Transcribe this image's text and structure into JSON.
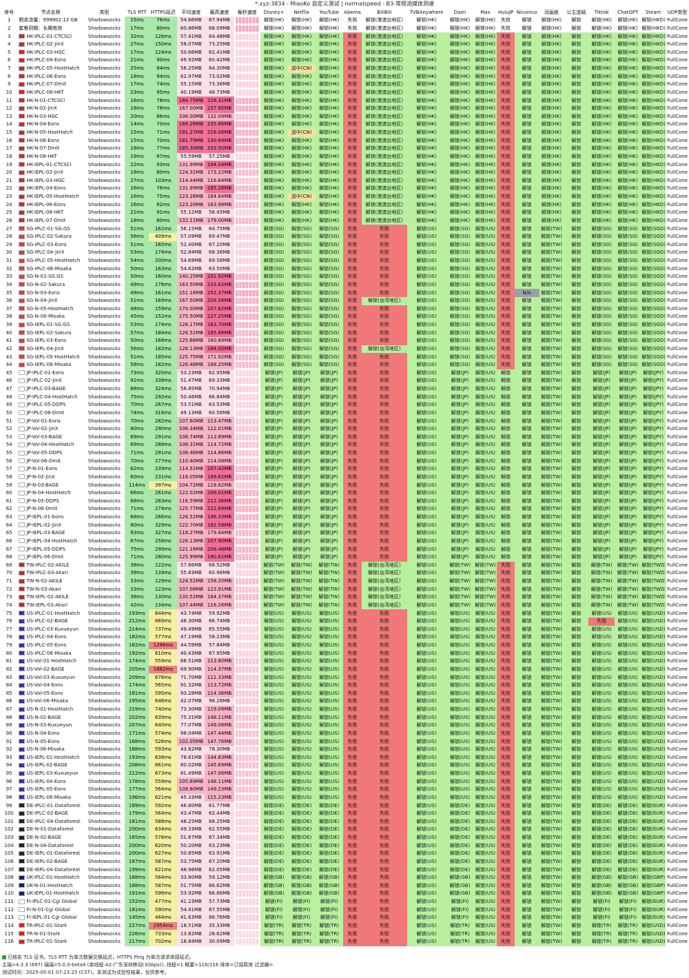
{
  "window_title": "*.xyz-3834 - MiaoKo 自定义测试 | normalspeed - B3-常规流媒体测速",
  "headers": [
    "序号",
    "节点名称",
    "类型",
    "TLS RTT",
    "HTTPS延迟",
    "平均速度",
    "最高速度",
    "每秒速度",
    "Disney+",
    "Netflix",
    "YouTube",
    "Abema",
    "BiliBili",
    "TVBAnywhere",
    "Dazn",
    "Max",
    "HuluJP",
    "Niconico",
    "动画疯",
    "公主连结",
    "Tiktok",
    "ChatGPT",
    "Steam",
    "UDP类型"
  ],
  "info_rows": [
    {
      "idx": "1",
      "name": "剩余流量：999802.12 GB",
      "type": "Shadowsocks",
      "tls": "15ms",
      "https": "76ms",
      "avg": "54.66MB",
      "max": "67.94MB"
    },
    {
      "idx": "2",
      "name": "套餐到期：长期有效",
      "type": "Shadowsocks",
      "tls": "17ms",
      "https": "80ms",
      "avg": "60.86MB",
      "max": "68.09MB"
    }
  ],
  "nodes": [
    [
      "3",
      "HK-IPLC-01-CTCSCI",
      "32ms",
      "126ms",
      "57.41MB",
      "64.48MB",
      "HK"
    ],
    [
      "4",
      "HK-IPLC-02-JinX",
      "27ms",
      "150ms",
      "58.07MB",
      "73.25MB",
      "HK"
    ],
    [
      "5",
      "HK-IPLC-03-HGC",
      "17ms",
      "124ms",
      "50.66MB",
      "62.41MB",
      "HK"
    ],
    [
      "6",
      "HK-IPLC-04-Eons",
      "21ms",
      "90ms",
      "49.92MB",
      "60.42MB",
      "HK"
    ],
    [
      "7",
      "HK-IPLC-05-HostHatch",
      "25ms",
      "94ms",
      "56.25MB",
      "64.30MB",
      "HK"
    ],
    [
      "8",
      "HK-IPLC-06-Eons",
      "18ms",
      "94ms",
      "62.97MB",
      "73.02MB",
      "HK"
    ],
    [
      "9",
      "HK-IPLC-07-Dmit",
      "17ms",
      "74ms",
      "55.15MB",
      "73.36MB",
      "HK"
    ],
    [
      "10",
      "HK-IPLC-08-HKT",
      "23ms",
      "95ms",
      "40.19MB",
      "48.73MB",
      "HK"
    ],
    [
      "11",
      "HK-N-01-CTCSCI",
      "16ms",
      "78ms",
      "184.75MB",
      "228.31MB",
      "HK"
    ],
    [
      "12",
      "HK-N-02-JinX",
      "18ms",
      "78ms",
      "167.00MB",
      "237.95MB",
      "HK"
    ],
    [
      "13",
      "HK-N-03-HGC",
      "20ms",
      "86ms",
      "106.00MB",
      "132.09MB",
      "HK"
    ],
    [
      "14",
      "HK-N-04-Eons",
      "14ms",
      "70ms",
      "189.26MB",
      "235.86MB",
      "HK"
    ],
    [
      "15",
      "HK-N-05-HostHatch",
      "15ms",
      "71ms",
      "191.27MB",
      "216.06MB",
      "HK"
    ],
    [
      "16",
      "HK-N-06-Eons",
      "15ms",
      "70ms",
      "181.79MB",
      "230.69MB",
      "HK"
    ],
    [
      "17",
      "HK-N-07-Dmit",
      "18ms",
      "77ms",
      "185.30MB",
      "233.50MB",
      "HK"
    ],
    [
      "18",
      "HK-N-08-HKT",
      "19ms",
      "87ms",
      "55.59MB",
      "57.25MB",
      "HK"
    ],
    [
      "19",
      "HK-IEPL-01-CTCSCI",
      "22ms",
      "93ms",
      "131.99MB",
      "194.04MB",
      "HK"
    ],
    [
      "20",
      "HK-IEPL-02-JinX",
      "18ms",
      "80ms",
      "124.31MB",
      "173.22MB",
      "HK"
    ],
    [
      "21",
      "HK-IEPL-03-HGC",
      "27ms",
      "103ms",
      "114.44MB",
      "116.64MB",
      "HK"
    ],
    [
      "22",
      "HK-IEPL-04-Eons",
      "16ms",
      "76ms",
      "131.99MB",
      "185.28MB",
      "HK"
    ],
    [
      "23",
      "HK-IEPL-05-HostHatch",
      "16ms",
      "75ms",
      "123.26MB",
      "164.84MB",
      "HK"
    ],
    [
      "24",
      "HK-IEPL-06-Eons",
      "16ms",
      "82ms",
      "123.20MB",
      "163.98MB",
      "HK"
    ],
    [
      "25",
      "HK-IEPL-08-HKT",
      "21ms",
      "91ms",
      "55.12MB",
      "56.45MB",
      "HK"
    ],
    [
      "26",
      "HK-IEPL-07-Dmit",
      "18ms",
      "80ms",
      "132.11MB",
      "179.00MB",
      "HK"
    ],
    [
      "27",
      "SG-IPLC-01-SG.GS",
      "51ms",
      "162ms",
      "56.15MB",
      "64.75MB",
      "SG"
    ],
    [
      "28",
      "SG-IPLC-02-Sakura",
      "56ms",
      "409ms",
      "57.09MB",
      "69.47MB",
      "SG"
    ],
    [
      "29",
      "SG-IPLC-03-Eons",
      "51ms",
      "165ms",
      "52.40MB",
      "67.20MB",
      "SG"
    ],
    [
      "30",
      "SG-IPLC-04-JinX",
      "53ms",
      "174ms",
      "52.84MB",
      "68.36MB",
      "SG"
    ],
    [
      "31",
      "SG-IPLC-05-HostHatch",
      "54ms",
      "200ms",
      "54.69MB",
      "69.58MB",
      "SG"
    ],
    [
      "32",
      "SG-IPLC-06-Misaka",
      "50ms",
      "163ms",
      "54.62MB",
      "63.50MB",
      "SG"
    ],
    [
      "33",
      "SG-N-01-SG.GS",
      "50ms",
      "160ms",
      "140.25MB",
      "201.92MB",
      "SG"
    ],
    [
      "34",
      "SG-N-02-Sakura",
      "49ms",
      "176ms",
      "163.50MB",
      "233.62MB",
      "SG"
    ],
    [
      "35",
      "SG-N-03-Eons",
      "49ms",
      "161ms",
      "151.16MB",
      "252.37MB",
      "SG"
    ],
    [
      "36",
      "SG-N-04-JinX",
      "51ms",
      "169ms",
      "167.50MB",
      "209.58MB",
      "SG"
    ],
    [
      "37",
      "SG-N-05-HostHatch",
      "48ms",
      "159ms",
      "170.00MB",
      "207.62MB",
      "SG"
    ],
    [
      "38",
      "SG-N-06-Misaka",
      "45ms",
      "152ms",
      "175.50MB",
      "227.25MB",
      "SG"
    ],
    [
      "39",
      "SG-IEPL-01-SG.GS",
      "53ms",
      "174ms",
      "128.17MB",
      "183.70MB",
      "SG"
    ],
    [
      "40",
      "SG-IEPL-02-Sakura",
      "57ms",
      "184ms",
      "126.51MB",
      "185.86MB",
      "SG"
    ],
    [
      "41",
      "SG-IEPL-03-Eons",
      "50ms",
      "168ms",
      "125.66MB",
      "160.69MB",
      "SG"
    ],
    [
      "42",
      "SG-IEPL-04-JinX",
      "56ms",
      "182ms",
      "126.13MB",
      "184.00MB",
      "SG"
    ],
    [
      "43",
      "SG-IEPL-05-HostHatch",
      "51ms",
      "185ms",
      "125.75MB",
      "171.92MB",
      "SG"
    ],
    [
      "44",
      "SG-IEPL-06-Misaka",
      "58ms",
      "182ms",
      "126.48MB",
      "168.25MB",
      "SG"
    ],
    [
      "45",
      "JP-IPLC-01-Eons",
      "73ms",
      "320ms",
      "53.23MB",
      "62.95MB",
      "JP"
    ],
    [
      "46",
      "JP-IPLC-02-JinX",
      "91ms",
      "338ms",
      "51.47MB",
      "69.33MB",
      "JP"
    ],
    [
      "47",
      "JP-IPLC-03-BAGE",
      "88ms",
      "324ms",
      "56.85MB",
      "70.94MB",
      "JP"
    ],
    [
      "48",
      "JP-IPLC-04-HostHatch",
      "75ms",
      "292ms",
      "50.46MB",
      "66.84MB",
      "JP"
    ],
    [
      "49",
      "JP-IPLC-05-DDPS",
      "70ms",
      "267ms",
      "53.51MB",
      "63.53MB",
      "JP"
    ],
    [
      "50",
      "JP-IPLC-06-Dmit",
      "74ms",
      "316ms",
      "49.13MB",
      "60.58MB",
      "JP"
    ],
    [
      "51",
      "JP-Vol-01-Eons",
      "70ms",
      "282ms",
      "107.60MB",
      "113.47MB",
      "JP"
    ],
    [
      "52",
      "JP-Vol-02-JinX",
      "80ms",
      "290ms",
      "106.34MB",
      "112.01MB",
      "JP"
    ],
    [
      "53",
      "JP-Vol-03-BAGE",
      "69ms",
      "291ms",
      "108.74MB",
      "113.89MB",
      "JP"
    ],
    [
      "54",
      "JP-Vol-04-HostHatch",
      "69ms",
      "288ms",
      "108.31MB",
      "114.72MB",
      "JP"
    ],
    [
      "55",
      "JP-Vol-05-DDPS",
      "71ms",
      "291ms",
      "108.46MB",
      "114.86MB",
      "JP"
    ],
    [
      "56",
      "JP-Vol-06-Dmit",
      "70ms",
      "277ms",
      "110.40MB",
      "114.08MB",
      "JP"
    ],
    [
      "57",
      "JP-N-01-Eons",
      "62ms",
      "239ms",
      "114.51MB",
      "207.42MB",
      "JP"
    ],
    [
      "58",
      "JP-N-02-JinX",
      "60ms",
      "231ms",
      "118.05MB",
      "199.62MB",
      "JP"
    ],
    [
      "59",
      "JP-N-03-BAGE",
      "114ms",
      "397ms",
      "104.72MB",
      "118.62MB",
      "JP"
    ],
    [
      "60",
      "JP-N-04-HostHatch",
      "66ms",
      "261ms",
      "122.02MB",
      "206.01MB",
      "JP"
    ],
    [
      "61",
      "JP-N-05-DDPS",
      "68ms",
      "263ms",
      "116.59MB",
      "212.36MB",
      "JP"
    ],
    [
      "62",
      "JP-N-06-Dmit",
      "71ms",
      "274ms",
      "125.77MB",
      "222.69MB",
      "JP"
    ],
    [
      "63",
      "JP-IEPL-01-Eons",
      "68ms",
      "266ms",
      "126.52MB",
      "196.33MB",
      "JP"
    ],
    [
      "64",
      "JP-IEPL-02-JinX",
      "80ms",
      "329ms",
      "122.70MB",
      "192.58MB",
      "JP"
    ],
    [
      "65",
      "JP-IEPL-03-BAGE",
      "93ms",
      "327ms",
      "118.27MB",
      "179.84MB",
      "JP"
    ],
    [
      "66",
      "JP-IEPL-04-HostHatch",
      "67ms",
      "258ms",
      "126.13MB",
      "207.90MB",
      "JP"
    ],
    [
      "67",
      "JP-IEPL-05-DDPS",
      "75ms",
      "299ms",
      "121.16MB",
      "208.48MB",
      "JP"
    ],
    [
      "68",
      "JP-IEPL-06-Dmit",
      "71ms",
      "280ms",
      "125.99MB",
      "190.81MB",
      "JP"
    ],
    [
      "69",
      "TW-IPLC-02-AKILE",
      "38ms",
      "122ms",
      "57.66MB",
      "68.52MB",
      "TW"
    ],
    [
      "70",
      "TW-IPLC-03-Akari",
      "39ms",
      "134ms",
      "55.83MB",
      "60.98MB",
      "TW"
    ],
    [
      "71",
      "TW-N-02-AKILE",
      "33ms",
      "129ms",
      "124.51MB",
      "158.20MB",
      "TW"
    ],
    [
      "72",
      "TW-N-03-Akari",
      "33ms",
      "123ms",
      "107.08MB",
      "123.91MB",
      "TW"
    ],
    [
      "73",
      "TW-IEPL-02-AKILE",
      "38ms",
      "130ms",
      "130.52MB",
      "164.37MB",
      "TW"
    ],
    [
      "74",
      "TW-IEPL-03-Akari",
      "42ms",
      "134ms",
      "107.44MB",
      "116.26MB",
      "TW"
    ],
    [
      "75",
      "US-IPLC-01-HostHatch",
      "193ms",
      "644ms",
      "43.74MB",
      "59.92MB",
      "US"
    ],
    [
      "76",
      "US-IPLC-02-BAGE",
      "212ms",
      "669ms",
      "46.30MB",
      "66.74MB",
      "US"
    ],
    [
      "77",
      "US-IPLC-03-Kuxueyun",
      "214ms",
      "737ms",
      "49.49MB",
      "65.55MB",
      "US"
    ],
    [
      "78",
      "US-IPLC-04-Eons",
      "182ms",
      "577ms",
      "47.19MB",
      "58.23MB",
      "US"
    ],
    [
      "79",
      "US-IPLC-05-Eons",
      "182ms",
      "1296ms",
      "44.59MB",
      "57.84MB",
      "US"
    ],
    [
      "80",
      "US-IPLC-06-Misaka",
      "192ms",
      "610ms",
      "40.43MB",
      "67.95MB",
      "US"
    ],
    [
      "81",
      "US-Vol-01-HostHatch",
      "174ms",
      "559ms",
      "68.51MB",
      "113.80MB",
      "US"
    ],
    [
      "82",
      "US-Vol-02-BAGE",
      "205ms",
      "1682ms",
      "69.90MB",
      "114.37MB",
      "US"
    ],
    [
      "83",
      "US-Vol-03-Kuxueyun",
      "209ms",
      "676ms",
      "71.70MB",
      "111.33MB",
      "US"
    ],
    [
      "84",
      "US-Vol-04-Eons",
      "174ms",
      "565ms",
      "91.32MB",
      "113.72MB",
      "US"
    ],
    [
      "85",
      "US-Vol-05-Eons",
      "181ms",
      "595ms",
      "93.28MB",
      "114.36MB",
      "US"
    ],
    [
      "86",
      "US-Vol-06-Misaka",
      "195ms",
      "646ms",
      "42.07MB",
      "98.28MB",
      "US"
    ],
    [
      "87",
      "US-N-01-HostHatch",
      "219ms",
      "740ms",
      "73.30MB",
      "119.09MB",
      "US"
    ],
    [
      "88",
      "US-N-02-BAGE",
      "202ms",
      "639ms",
      "75.31MB",
      "148.11MB",
      "US"
    ],
    [
      "89",
      "US-N-03-Kuxueyun",
      "207ms",
      "640ms",
      "77.07MB",
      "149.08MB",
      "US"
    ],
    [
      "90",
      "US-N-04-Eons",
      "171ms",
      "574ms",
      "98.04MB",
      "147.44MB",
      "US"
    ],
    [
      "91",
      "US-N-05-Eons",
      "168ms",
      "526ms",
      "102.05MB",
      "147.76MB",
      "US"
    ],
    [
      "92",
      "US-N-06-Misaka",
      "188ms",
      "593ms",
      "43.82MB",
      "78.30MB",
      "US"
    ],
    [
      "93",
      "US-IEPL-01-HostHatch",
      "193ms",
      "638ms",
      "78.61MB",
      "144.83MB",
      "US"
    ],
    [
      "94",
      "US-IEPL-02-BAGE",
      "208ms",
      "661ms",
      "80.02MB",
      "145.69MB",
      "US"
    ],
    [
      "95",
      "US-IEPL-03-Kuxueyun",
      "212ms",
      "673ms",
      "81.49MB",
      "147.06MB",
      "US"
    ],
    [
      "96",
      "US-IEPL-04-Eons",
      "178ms",
      "559ms",
      "105.69MB",
      "148.11MB",
      "US"
    ],
    [
      "97",
      "US-IEPL-05-Eons",
      "177ms",
      "564ms",
      "108.80MB",
      "149.23MB",
      "US"
    ],
    [
      "98",
      "US-IEPL-06-Misaka",
      "196ms",
      "621ms",
      "45.33MB",
      "115.23MB",
      "US"
    ],
    [
      "99",
      "DE-IPLC-01-Dataforest",
      "189ms",
      "592ms",
      "46.80MB",
      "61.77MB",
      "DE"
    ],
    [
      "100",
      "DE-IPLC-02-BAGE",
      "179ms",
      "564ms",
      "43.47MB",
      "62.44MB",
      "DE"
    ],
    [
      "101",
      "DE-IPLC-04-Dataforest",
      "181ms",
      "588ms",
      "48.25MB",
      "68.25MB",
      "DE"
    ],
    [
      "102",
      "DE-N-01-Dataforest",
      "200ms",
      "634ms",
      "49.33MB",
      "62.55MB",
      "DE"
    ],
    [
      "103",
      "DE-N-02-BAGE",
      "185ms",
      "578ms",
      "51.67MB",
      "67.34MB",
      "DE"
    ],
    [
      "104",
      "DE-N-04-Dataforest",
      "200ms",
      "620ms",
      "50.20MB",
      "63.23MB",
      "DE"
    ],
    [
      "105",
      "DE-IEPL-01-Dataforest",
      "200ms",
      "627ms",
      "50.85MB",
      "63.91MB",
      "DE"
    ],
    [
      "106",
      "DE-IEPL-02-BAGE",
      "187ms",
      "587ms",
      "53.75MB",
      "67.20MB",
      "DE"
    ],
    [
      "107",
      "DE-IEPL-04-Dataforest",
      "199ms",
      "621ms",
      "48.96MB",
      "62.05MB",
      "DE"
    ],
    [
      "108",
      "UK-IPLC-01-HostHatch",
      "188ms",
      "584ms",
      "33.80MB",
      "59.12MB",
      "GB"
    ],
    [
      "109",
      "UK-N-01-HostHatch",
      "188ms",
      "587ms",
      "51.75MB",
      "66.62MB",
      "GB"
    ],
    [
      "110",
      "UK-IEPL-01-HostHatch",
      "191ms",
      "596ms",
      "53.92MB",
      "66.86MB",
      "GB"
    ],
    [
      "111",
      "FI-IPLC-01-Cgi Global",
      "152ms",
      "477ms",
      "41.23MB",
      "57.73MB",
      "FI"
    ],
    [
      "112",
      "FI-N-01-Cgi Global",
      "181ms",
      "590ms",
      "54.41MB",
      "67.55MB",
      "FI"
    ],
    [
      "113",
      "FI-IEPL-01-Cgi Global",
      "145ms",
      "484ms",
      "41.63MB",
      "86.76MB",
      "FI"
    ],
    [
      "114",
      "TR-IPLC-01-Stark",
      "227ms",
      "2954ms",
      "18.51MB",
      "35.33MB",
      "TR"
    ],
    [
      "115",
      "TR-N-01-Stark",
      "226ms",
      "733ms",
      "13.82MB",
      "28.62MB",
      "TR"
    ],
    [
      "116",
      "TR-IPLC-01-Stark",
      "217ms",
      "702ms",
      "18.84MB",
      "30.09MB",
      "TR"
    ]
  ],
  "unlock_words": {
    "ok": "解锁",
    "fail": "失败",
    "na": "N/A",
    "type": "Shadowsocks",
    "udp": "FullCone",
    "bili_hk": "解锁(港澳台地区)",
    "bili_tw": "解锁(台湾地区)",
    "bili_fail": "失败",
    "netflix_cn": "送中(CN)"
  },
  "colors": {
    "ok": "#b8f0a0",
    "fail": "#f07878",
    "warn": "#f8e0a0",
    "na": "#9aa0a8",
    "speed_high": "#f07098"
  },
  "footer": {
    "line1": "已核实 TLS 证书。TLS RTT 为单次数据交换延迟，HTTPS Ping 为单次请求体感延迟。",
    "line2": "主端=4.3.3 (697) 端端=5.0.0-beta4 (单线程-A2-广东深圳移动(3Gbps)), 线程=1 概要=116/116 排序=订阅原序 过滤器=",
    "line3": "测试时间：2025-05-01 07:23:25 (CST)，本测试为试验性结果，仅供参考。"
  }
}
